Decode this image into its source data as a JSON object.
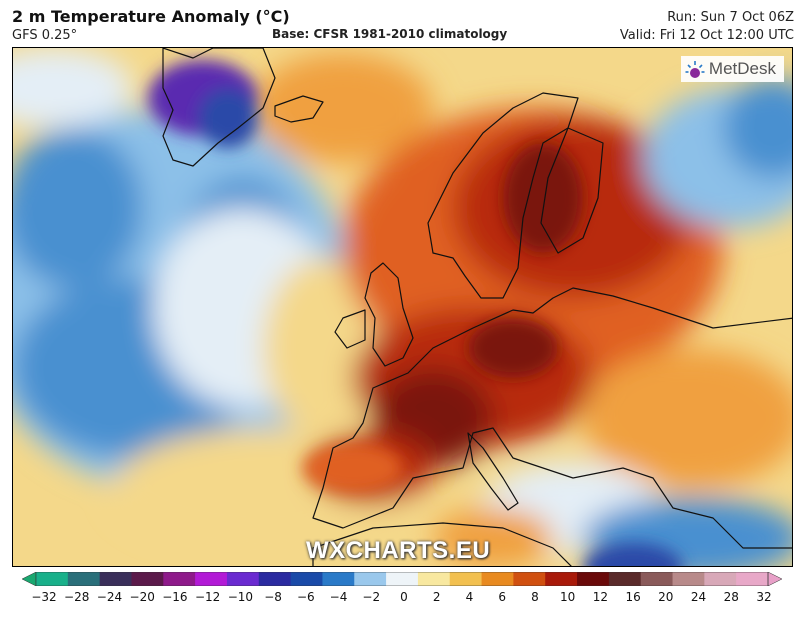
{
  "header": {
    "title": "2 m Temperature Anomaly (°C)",
    "model": "GFS 0.25°",
    "base": "Base: CFSR 1981-2010 climatology",
    "run": "Run: Sun 7 Oct 06Z",
    "valid": "Valid: Fri 12 Oct 12:00 UTC"
  },
  "branding": {
    "logo_text": "MetDesk",
    "logo_icon": "metdesk-sun-icon",
    "watermark": "WXCHARTS.EU"
  },
  "colorbar": {
    "ticks": [
      "−32",
      "−28",
      "−24",
      "−20",
      "−16",
      "−12",
      "−10",
      "−8",
      "−6",
      "−4",
      "−2",
      "0",
      "2",
      "4",
      "6",
      "8",
      "10",
      "12",
      "16",
      "20",
      "24",
      "28",
      "32"
    ],
    "colors": [
      "#19b08a",
      "#2a6f7a",
      "#3a2f5a",
      "#5b1a4a",
      "#8e1a8a",
      "#b21ad6",
      "#6a2ad0",
      "#2a2aa0",
      "#1a4aa8",
      "#2a7ac8",
      "#9ac8ec",
      "#eef4f8",
      "#f8e8a0",
      "#f2c050",
      "#e88a20",
      "#d05010",
      "#a81a0a",
      "#6a0a0a",
      "#5a2a2a",
      "#8a5a5a",
      "#b88a8a",
      "#d8a8b8",
      "#e8a8c8"
    ],
    "arrow_colors": {
      "left": "#1aa870",
      "right": "#e8a0c8"
    }
  },
  "map": {
    "variable": "2 m Temperature Anomaly",
    "region": "Europe / North Atlantic",
    "palette": {
      "cold_deep": "#2a4aa8",
      "cold": "#4a90d0",
      "cool": "#8cc0e8",
      "neutral": "#e4eef6",
      "mild": "#f4d88a",
      "warm": "#f0a040",
      "hot": "#e06020",
      "very_hot": "#b82a10",
      "extreme": "#7a1208",
      "greenland_cold": "#5a2ab0",
      "coast": "#111111"
    }
  }
}
